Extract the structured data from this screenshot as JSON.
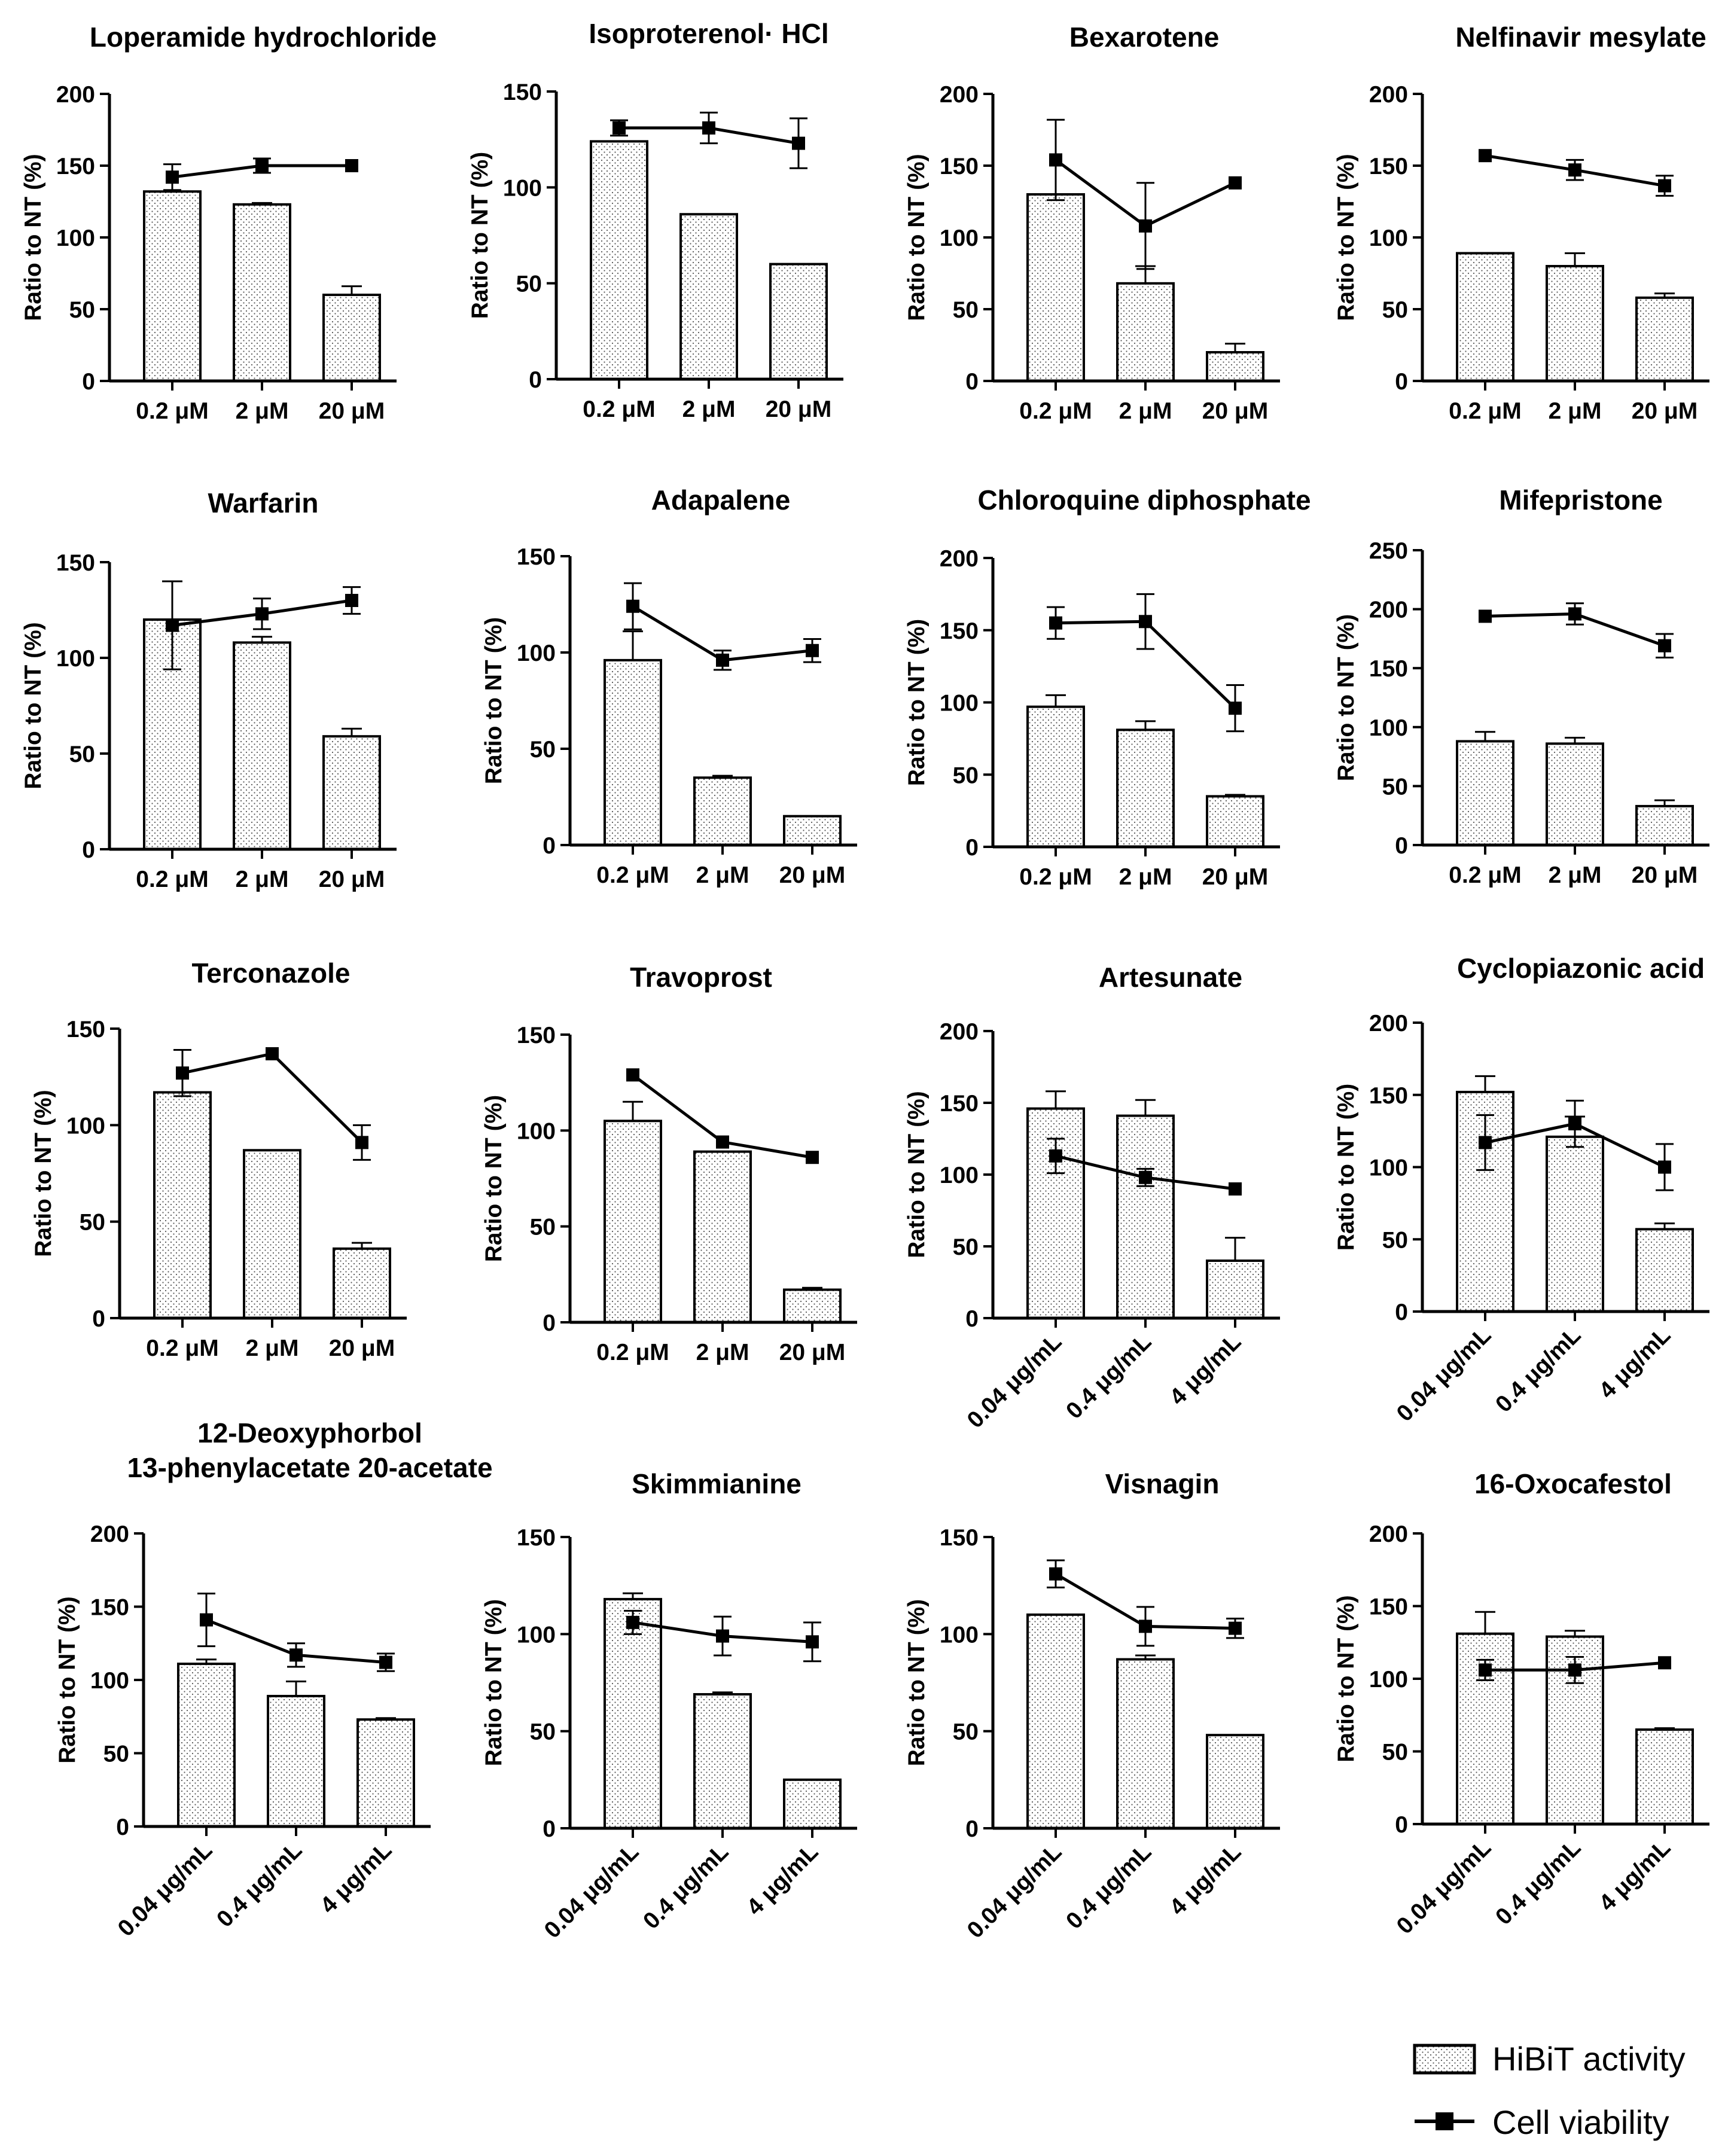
{
  "chart_data": [
    {
      "type": "bar",
      "title": [
        "Loperamide hydrochloride"
      ],
      "ylabel": "Ratio to NT (%)",
      "ylim": [
        0,
        200
      ],
      "yticks": [
        0,
        50,
        100,
        150,
        200
      ],
      "categories": [
        "0.2 μM",
        "2 μM",
        "20 μM"
      ],
      "rotated": false,
      "series": [
        {
          "name": "HiBiT activity",
          "values": [
            132,
            123,
            60
          ],
          "errors": [
            0,
            1,
            6
          ]
        },
        {
          "name": "Cell viability",
          "values": [
            142,
            150,
            150
          ],
          "errors": [
            9,
            5,
            0
          ]
        }
      ]
    },
    {
      "type": "bar",
      "title": [
        "Isoproterenol· HCl"
      ],
      "ylabel": "Ratio to NT (%)",
      "ylim": [
        0,
        150
      ],
      "yticks": [
        0,
        50,
        100,
        150
      ],
      "categories": [
        "0.2 μM",
        "2 μM",
        "20 μM"
      ],
      "rotated": false,
      "series": [
        {
          "name": "HiBiT activity",
          "values": [
            124,
            86,
            60
          ],
          "errors": [
            0,
            0,
            0
          ]
        },
        {
          "name": "Cell viability",
          "values": [
            131,
            131,
            123
          ],
          "errors": [
            4,
            8,
            13
          ]
        }
      ]
    },
    {
      "type": "bar",
      "title": [
        "Bexarotene"
      ],
      "ylabel": "Ratio to NT (%)",
      "ylim": [
        0,
        200
      ],
      "yticks": [
        0,
        50,
        100,
        150,
        200
      ],
      "categories": [
        "0.2 μM",
        "2 μM",
        "20 μM"
      ],
      "rotated": false,
      "series": [
        {
          "name": "HiBiT activity",
          "values": [
            130,
            68,
            20
          ],
          "errors": [
            0,
            12,
            6
          ]
        },
        {
          "name": "Cell viability",
          "values": [
            154,
            108,
            138
          ],
          "errors": [
            28,
            30,
            0
          ]
        }
      ]
    },
    {
      "type": "bar",
      "title": [
        "Nelfinavir mesylate"
      ],
      "ylabel": "Ratio to NT (%)",
      "ylim": [
        0,
        200
      ],
      "yticks": [
        0,
        50,
        100,
        150,
        200
      ],
      "categories": [
        "0.2 μM",
        "2 μM",
        "20 μM"
      ],
      "rotated": false,
      "series": [
        {
          "name": "HiBiT activity",
          "values": [
            89,
            80,
            58
          ],
          "errors": [
            0,
            9,
            3
          ]
        },
        {
          "name": "Cell viability",
          "values": [
            157,
            147,
            136
          ],
          "errors": [
            0,
            7,
            7
          ]
        }
      ]
    },
    {
      "type": "bar",
      "title": [
        "Warfarin"
      ],
      "ylabel": "Ratio to NT (%)",
      "ylim": [
        0,
        150
      ],
      "yticks": [
        0,
        50,
        100,
        150
      ],
      "categories": [
        "0.2 μM",
        "2 μM",
        "20 μM"
      ],
      "rotated": false,
      "series": [
        {
          "name": "HiBiT activity",
          "values": [
            120,
            108,
            59
          ],
          "errors": [
            20,
            3,
            4
          ]
        },
        {
          "name": "Cell viability",
          "values": [
            117,
            123,
            130
          ],
          "errors": [
            23,
            8,
            7
          ]
        }
      ]
    },
    {
      "type": "bar",
      "title": [
        "Adapalene"
      ],
      "ylabel": "Ratio to NT (%)",
      "ylim": [
        0,
        150
      ],
      "yticks": [
        0,
        50,
        100,
        150
      ],
      "categories": [
        "0.2 μM",
        "2 μM",
        "20 μM"
      ],
      "rotated": false,
      "series": [
        {
          "name": "HiBiT activity",
          "values": [
            96,
            35,
            15
          ],
          "errors": [
            15,
            1,
            0
          ]
        },
        {
          "name": "Cell viability",
          "values": [
            124,
            96,
            101
          ],
          "errors": [
            12,
            5,
            6
          ]
        }
      ]
    },
    {
      "type": "bar",
      "title": [
        "Chloroquine diphosphate"
      ],
      "ylabel": "Ratio to NT (%)",
      "ylim": [
        0,
        200
      ],
      "yticks": [
        0,
        50,
        100,
        150,
        200
      ],
      "categories": [
        "0.2 μM",
        "2 μM",
        "20 μM"
      ],
      "rotated": false,
      "series": [
        {
          "name": "HiBiT activity",
          "values": [
            97,
            81,
            35
          ],
          "errors": [
            8,
            6,
            1
          ]
        },
        {
          "name": "Cell viability",
          "values": [
            155,
            156,
            96
          ],
          "errors": [
            11,
            19,
            16
          ]
        }
      ]
    },
    {
      "type": "bar",
      "title": [
        "Mifepristone"
      ],
      "ylabel": "Ratio to NT (%)",
      "ylim": [
        0,
        250
      ],
      "yticks": [
        0,
        50,
        100,
        150,
        200,
        250
      ],
      "categories": [
        "0.2 μM",
        "2 μM",
        "20 μM"
      ],
      "rotated": false,
      "series": [
        {
          "name": "HiBiT activity",
          "values": [
            88,
            86,
            33
          ],
          "errors": [
            8,
            5,
            5
          ]
        },
        {
          "name": "Cell viability",
          "values": [
            194,
            196,
            169
          ],
          "errors": [
            0,
            9,
            10
          ]
        }
      ]
    },
    {
      "type": "bar",
      "title": [
        "Terconazole"
      ],
      "ylabel": "Ratio to NT (%)",
      "ylim": [
        0,
        150
      ],
      "yticks": [
        0,
        50,
        100,
        150
      ],
      "categories": [
        "0.2 μM",
        "2 μM",
        "20 μM"
      ],
      "rotated": false,
      "series": [
        {
          "name": "HiBiT activity",
          "values": [
            117,
            87,
            36
          ],
          "errors": [
            0,
            0,
            3
          ]
        },
        {
          "name": "Cell viability",
          "values": [
            127,
            137,
            91
          ],
          "errors": [
            12,
            0,
            9
          ]
        }
      ]
    },
    {
      "type": "bar",
      "title": [
        "Travoprost"
      ],
      "ylabel": "Ratio to NT (%)",
      "ylim": [
        0,
        150
      ],
      "yticks": [
        0,
        50,
        100,
        150
      ],
      "categories": [
        "0.2 μM",
        "2 μM",
        "20 μM"
      ],
      "rotated": false,
      "series": [
        {
          "name": "HiBiT activity",
          "values": [
            105,
            89,
            17
          ],
          "errors": [
            10,
            0,
            1
          ]
        },
        {
          "name": "Cell viability",
          "values": [
            129,
            94,
            86
          ],
          "errors": [
            0,
            0,
            0
          ]
        }
      ]
    },
    {
      "type": "bar",
      "title": [
        "Artesunate"
      ],
      "ylabel": "Ratio to NT (%)",
      "ylim": [
        0,
        200
      ],
      "yticks": [
        0,
        50,
        100,
        150,
        200
      ],
      "categories": [
        "0.04 μg/mL",
        "0.4 μg/mL",
        "4 μg/mL"
      ],
      "rotated": true,
      "series": [
        {
          "name": "HiBiT activity",
          "values": [
            146,
            141,
            40
          ],
          "errors": [
            12,
            11,
            16
          ]
        },
        {
          "name": "Cell viability",
          "values": [
            113,
            98,
            90
          ],
          "errors": [
            12,
            6,
            0
          ]
        }
      ]
    },
    {
      "type": "bar",
      "title": [
        "Cyclopiazonic acid"
      ],
      "ylabel": "Ratio to NT (%)",
      "ylim": [
        0,
        200
      ],
      "yticks": [
        0,
        50,
        100,
        150,
        200
      ],
      "categories": [
        "0.04 μg/mL",
        "0.4 μg/mL",
        "4 μg/mL"
      ],
      "rotated": true,
      "series": [
        {
          "name": "HiBiT activity",
          "values": [
            152,
            121,
            57
          ],
          "errors": [
            11,
            14,
            4
          ]
        },
        {
          "name": "Cell viability",
          "values": [
            117,
            130,
            100
          ],
          "errors": [
            19,
            16,
            16
          ]
        }
      ]
    },
    {
      "type": "bar",
      "title": [
        "12-Deoxyphorbol",
        "13-phenylacetate 20-acetate"
      ],
      "ylabel": "Ratio to NT (%)",
      "ylim": [
        0,
        200
      ],
      "yticks": [
        0,
        50,
        100,
        150,
        200
      ],
      "categories": [
        "0.04 μg/mL",
        "0.4 μg/mL",
        "4 μg/mL"
      ],
      "rotated": true,
      "series": [
        {
          "name": "HiBiT activity",
          "values": [
            111,
            89,
            73
          ],
          "errors": [
            3,
            10,
            1
          ]
        },
        {
          "name": "Cell viability",
          "values": [
            141,
            117,
            112
          ],
          "errors": [
            18,
            8,
            6
          ]
        }
      ]
    },
    {
      "type": "bar",
      "title": [
        "Skimmianine"
      ],
      "ylabel": "Ratio to NT (%)",
      "ylim": [
        0,
        150
      ],
      "yticks": [
        0,
        50,
        100,
        150
      ],
      "categories": [
        "0.04 μg/mL",
        "0.4 μg/mL",
        "4 μg/mL"
      ],
      "rotated": true,
      "series": [
        {
          "name": "HiBiT activity",
          "values": [
            118,
            69,
            25
          ],
          "errors": [
            3,
            1,
            0
          ]
        },
        {
          "name": "Cell viability",
          "values": [
            106,
            99,
            96
          ],
          "errors": [
            6,
            10,
            10
          ]
        }
      ]
    },
    {
      "type": "bar",
      "title": [
        "Visnagin"
      ],
      "ylabel": "Ratio to NT (%)",
      "ylim": [
        0,
        150
      ],
      "yticks": [
        0,
        50,
        100,
        150
      ],
      "categories": [
        "0.04 μg/mL",
        "0.4 μg/mL",
        "4 μg/mL"
      ],
      "rotated": true,
      "series": [
        {
          "name": "HiBiT activity",
          "values": [
            110,
            87,
            48
          ],
          "errors": [
            0,
            2,
            0
          ]
        },
        {
          "name": "Cell viability",
          "values": [
            131,
            104,
            103
          ],
          "errors": [
            7,
            10,
            5
          ]
        }
      ]
    },
    {
      "type": "bar",
      "title": [
        "16-Oxocafestol"
      ],
      "ylabel": "Ratio to NT (%)",
      "ylim": [
        0,
        200
      ],
      "yticks": [
        0,
        50,
        100,
        150,
        200
      ],
      "categories": [
        "0.04 μg/mL",
        "0.4 μg/mL",
        "4 μg/mL"
      ],
      "rotated": true,
      "series": [
        {
          "name": "HiBiT activity",
          "values": [
            131,
            129,
            65
          ],
          "errors": [
            15,
            4,
            1
          ]
        },
        {
          "name": "Cell viability",
          "values": [
            106,
            106,
            111
          ],
          "errors": [
            7,
            9,
            0
          ]
        }
      ]
    }
  ],
  "legend": {
    "items": [
      {
        "label": "HiBiT activity",
        "kind": "bar"
      },
      {
        "label": "Cell viability",
        "kind": "line"
      }
    ]
  }
}
